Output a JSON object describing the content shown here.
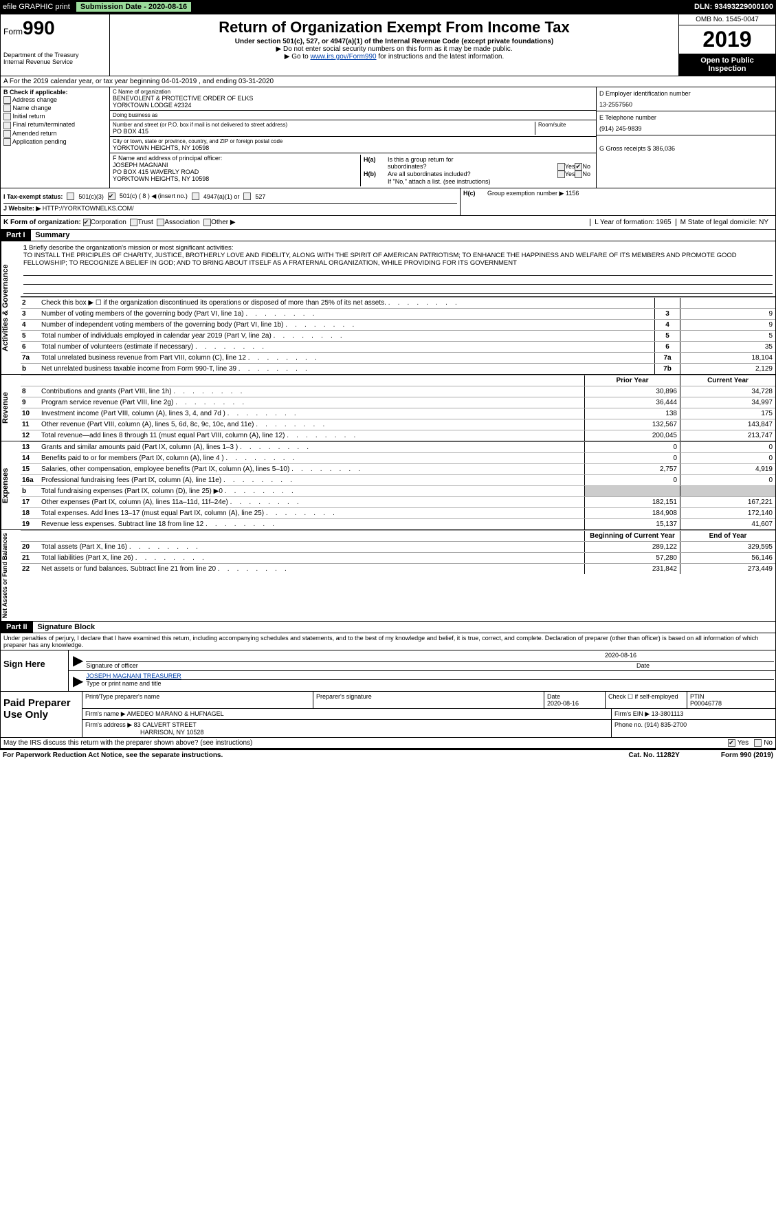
{
  "topbar": {
    "efile": "efile GRAPHIC print",
    "sub_date_label": "Submission Date - 2020-08-16",
    "dln": "DLN: 93493229000100"
  },
  "header": {
    "form_prefix": "Form",
    "form_num": "990",
    "dept": "Department of the Treasury\nInternal Revenue Service",
    "title": "Return of Organization Exempt From Income Tax",
    "sub1": "Under section 501(c), 527, or 4947(a)(1) of the Internal Revenue Code (except private foundations)",
    "sub2": "▶ Do not enter social security numbers on this form as it may be made public.",
    "sub3_pre": "▶ Go to ",
    "sub3_link": "www.irs.gov/Form990",
    "sub3_post": " for instructions and the latest information.",
    "omb": "OMB No. 1545-0047",
    "year": "2019",
    "open": "Open to Public Inspection"
  },
  "row_a": "A  For the 2019 calendar year, or tax year beginning 04-01-2019           , and ending 03-31-2020",
  "col_b": {
    "header": "B Check if applicable:",
    "items": [
      "Address change",
      "Name change",
      "Initial return",
      "Final return/terminated",
      "Amended return",
      "Application pending"
    ]
  },
  "col_c": {
    "name_label": "C Name of organization",
    "name1": "BENEVOLENT & PROTECTIVE ORDER OF ELKS",
    "name2": "YORKTOWN LODGE #2324",
    "dba_label": "Doing business as",
    "addr_label": "Number and street (or P.O. box if mail is not delivered to street address)",
    "room_label": "Room/suite",
    "addr": "PO BOX 415",
    "city_label": "City or town, state or province, country, and ZIP or foreign postal code",
    "city": "YORKTOWN HEIGHTS, NY  10598",
    "f_label": "F  Name and address of principal officer:",
    "f_name": "JOSEPH MAGNANI",
    "f_addr1": "PO BOX 415 WAVERLY ROAD",
    "f_addr2": "YORKTOWN HEIGHTS, NY  10598"
  },
  "col_d": {
    "d_label": "D Employer identification number",
    "ein": "13-2557560",
    "e_label": "E Telephone number",
    "phone": "(914) 245-9839",
    "g_label": "G Gross receipts $ 386,036"
  },
  "h": {
    "ha": "Is this a group return for",
    "ha2": "subordinates?",
    "hb": "Are all subordinates included?",
    "hb_note": "If \"No,\" attach a list. (see instructions)",
    "hc": "Group exemption number ▶   1156",
    "yes": "Yes",
    "no": "No"
  },
  "tax_status": {
    "i_label": "I    Tax-exempt status:",
    "c3": "501(c)(3)",
    "c_other": "501(c) ( 8 ) ◀ (insert no.)",
    "a1": "4947(a)(1) or",
    "s527": "527"
  },
  "website": {
    "j_label": "J   Website: ▶",
    "url": "HTTP://YORKTOWNELKS.COM/"
  },
  "k_row": {
    "k_label": "K Form of organization:",
    "corp": "Corporation",
    "trust": "Trust",
    "assoc": "Association",
    "other": "Other ▶",
    "l_label": "L Year of formation: 1965",
    "m_label": "M State of legal domicile: NY"
  },
  "part1": {
    "label": "Part I",
    "title": "Summary"
  },
  "mission": {
    "num": "1",
    "label": "Briefly describe the organization's mission or most significant activities:",
    "text": "TO INSTALL THE PRICIPLES OF CHARITY, JUSTICE, BROTHERLY LOVE AND FIDELITY, ALONG WITH THE SPIRIT OF AMERICAN PATRIOTISM; TO ENHANCE THE HAPPINESS AND WELFARE OF ITS MEMBERS AND PROMOTE GOOD FELLOWSHIP; TO RECOGNIZE A BELIEF IN GOD; AND TO BRING ABOUT ITSELF AS A FRATERNAL ORGANIZATION, WHILE PROVIDING FOR ITS GOVERNMENT"
  },
  "gov_lines": [
    {
      "n": "2",
      "d": "Check this box ▶ ☐  if the organization discontinued its operations or disposed of more than 25% of its net assets.",
      "box": "",
      "v": ""
    },
    {
      "n": "3",
      "d": "Number of voting members of the governing body (Part VI, line 1a)",
      "box": "3",
      "v": "9"
    },
    {
      "n": "4",
      "d": "Number of independent voting members of the governing body (Part VI, line 1b)",
      "box": "4",
      "v": "9"
    },
    {
      "n": "5",
      "d": "Total number of individuals employed in calendar year 2019 (Part V, line 2a)",
      "box": "5",
      "v": "5"
    },
    {
      "n": "6",
      "d": "Total number of volunteers (estimate if necessary)",
      "box": "6",
      "v": "35"
    },
    {
      "n": "7a",
      "d": "Total unrelated business revenue from Part VIII, column (C), line 12",
      "box": "7a",
      "v": "18,104"
    },
    {
      "n": "b",
      "d": "Net unrelated business taxable income from Form 990-T, line 39",
      "box": "7b",
      "v": "2,129"
    }
  ],
  "col_hdr": {
    "prior": "Prior Year",
    "curr": "Current Year"
  },
  "rev_lines": [
    {
      "n": "8",
      "d": "Contributions and grants (Part VIII, line 1h)",
      "p": "30,896",
      "c": "34,728"
    },
    {
      "n": "9",
      "d": "Program service revenue (Part VIII, line 2g)",
      "p": "36,444",
      "c": "34,997"
    },
    {
      "n": "10",
      "d": "Investment income (Part VIII, column (A), lines 3, 4, and 7d )",
      "p": "138",
      "c": "175"
    },
    {
      "n": "11",
      "d": "Other revenue (Part VIII, column (A), lines 5, 6d, 8c, 9c, 10c, and 11e)",
      "p": "132,567",
      "c": "143,847"
    },
    {
      "n": "12",
      "d": "Total revenue—add lines 8 through 11 (must equal Part VIII, column (A), line 12)",
      "p": "200,045",
      "c": "213,747"
    }
  ],
  "exp_lines": [
    {
      "n": "13",
      "d": "Grants and similar amounts paid (Part IX, column (A), lines 1–3 )",
      "p": "0",
      "c": "0"
    },
    {
      "n": "14",
      "d": "Benefits paid to or for members (Part IX, column (A), line 4 )",
      "p": "0",
      "c": "0"
    },
    {
      "n": "15",
      "d": "Salaries, other compensation, employee benefits (Part IX, column (A), lines 5–10)",
      "p": "2,757",
      "c": "4,919"
    },
    {
      "n": "16a",
      "d": "Professional fundraising fees (Part IX, column (A), line 11e)",
      "p": "0",
      "c": "0"
    },
    {
      "n": "b",
      "d": "Total fundraising expenses (Part IX, column (D), line 25) ▶0",
      "p": "",
      "c": "",
      "shaded": true
    },
    {
      "n": "17",
      "d": "Other expenses (Part IX, column (A), lines 11a–11d, 11f–24e)",
      "p": "182,151",
      "c": "167,221"
    },
    {
      "n": "18",
      "d": "Total expenses. Add lines 13–17 (must equal Part IX, column (A), line 25)",
      "p": "184,908",
      "c": "172,140"
    },
    {
      "n": "19",
      "d": "Revenue less expenses. Subtract line 18 from line 12",
      "p": "15,137",
      "c": "41,607"
    }
  ],
  "na_hdr": {
    "beg": "Beginning of Current Year",
    "end": "End of Year"
  },
  "na_lines": [
    {
      "n": "20",
      "d": "Total assets (Part X, line 16)",
      "p": "289,122",
      "c": "329,595"
    },
    {
      "n": "21",
      "d": "Total liabilities (Part X, line 26)",
      "p": "57,280",
      "c": "56,146"
    },
    {
      "n": "22",
      "d": "Net assets or fund balances. Subtract line 21 from line 20",
      "p": "231,842",
      "c": "273,449"
    }
  ],
  "vlabels": {
    "gov": "Activities & Governance",
    "rev": "Revenue",
    "exp": "Expenses",
    "na": "Net Assets or Fund Balances"
  },
  "part2": {
    "label": "Part II",
    "title": "Signature Block"
  },
  "sig": {
    "declare": "Under penalties of perjury, I declare that I have examined this return, including accompanying schedules and statements, and to the best of my knowledge and belief, it is true, correct, and complete. Declaration of preparer (other than officer) is based on all information of which preparer has any knowledge.",
    "sign_here": "Sign Here",
    "sig_officer": "Signature of officer",
    "date_label": "Date",
    "date": "2020-08-16",
    "name": "JOSEPH MAGNANI TREASURER",
    "type_label": "Type or print name and title"
  },
  "paid": {
    "label": "Paid Preparer Use Only",
    "print_label": "Print/Type preparer's name",
    "sig_label": "Preparer's signature",
    "date_label": "Date",
    "date": "2020-08-16",
    "check_label": "Check ☐ if self-employed",
    "ptin_label": "PTIN",
    "ptin": "P00046778",
    "firm_name_label": "Firm's name    ▶",
    "firm_name": "AMEDEO MARANO & HUFNAGEL",
    "firm_ein_label": "Firm's EIN ▶",
    "firm_ein": "13-3801113",
    "firm_addr_label": "Firm's address ▶",
    "firm_addr1": "83 CALVERT STREET",
    "firm_addr2": "HARRISON, NY  10528",
    "phone_label": "Phone no.",
    "phone": "(914) 835-2700"
  },
  "discuss": {
    "text": "May the IRS discuss this return with the preparer shown above? (see instructions)",
    "yes": "Yes",
    "no": "No"
  },
  "footer": {
    "left": "For Paperwork Reduction Act Notice, see the separate instructions.",
    "mid": "Cat. No. 11282Y",
    "right": "Form 990 (2019)"
  }
}
